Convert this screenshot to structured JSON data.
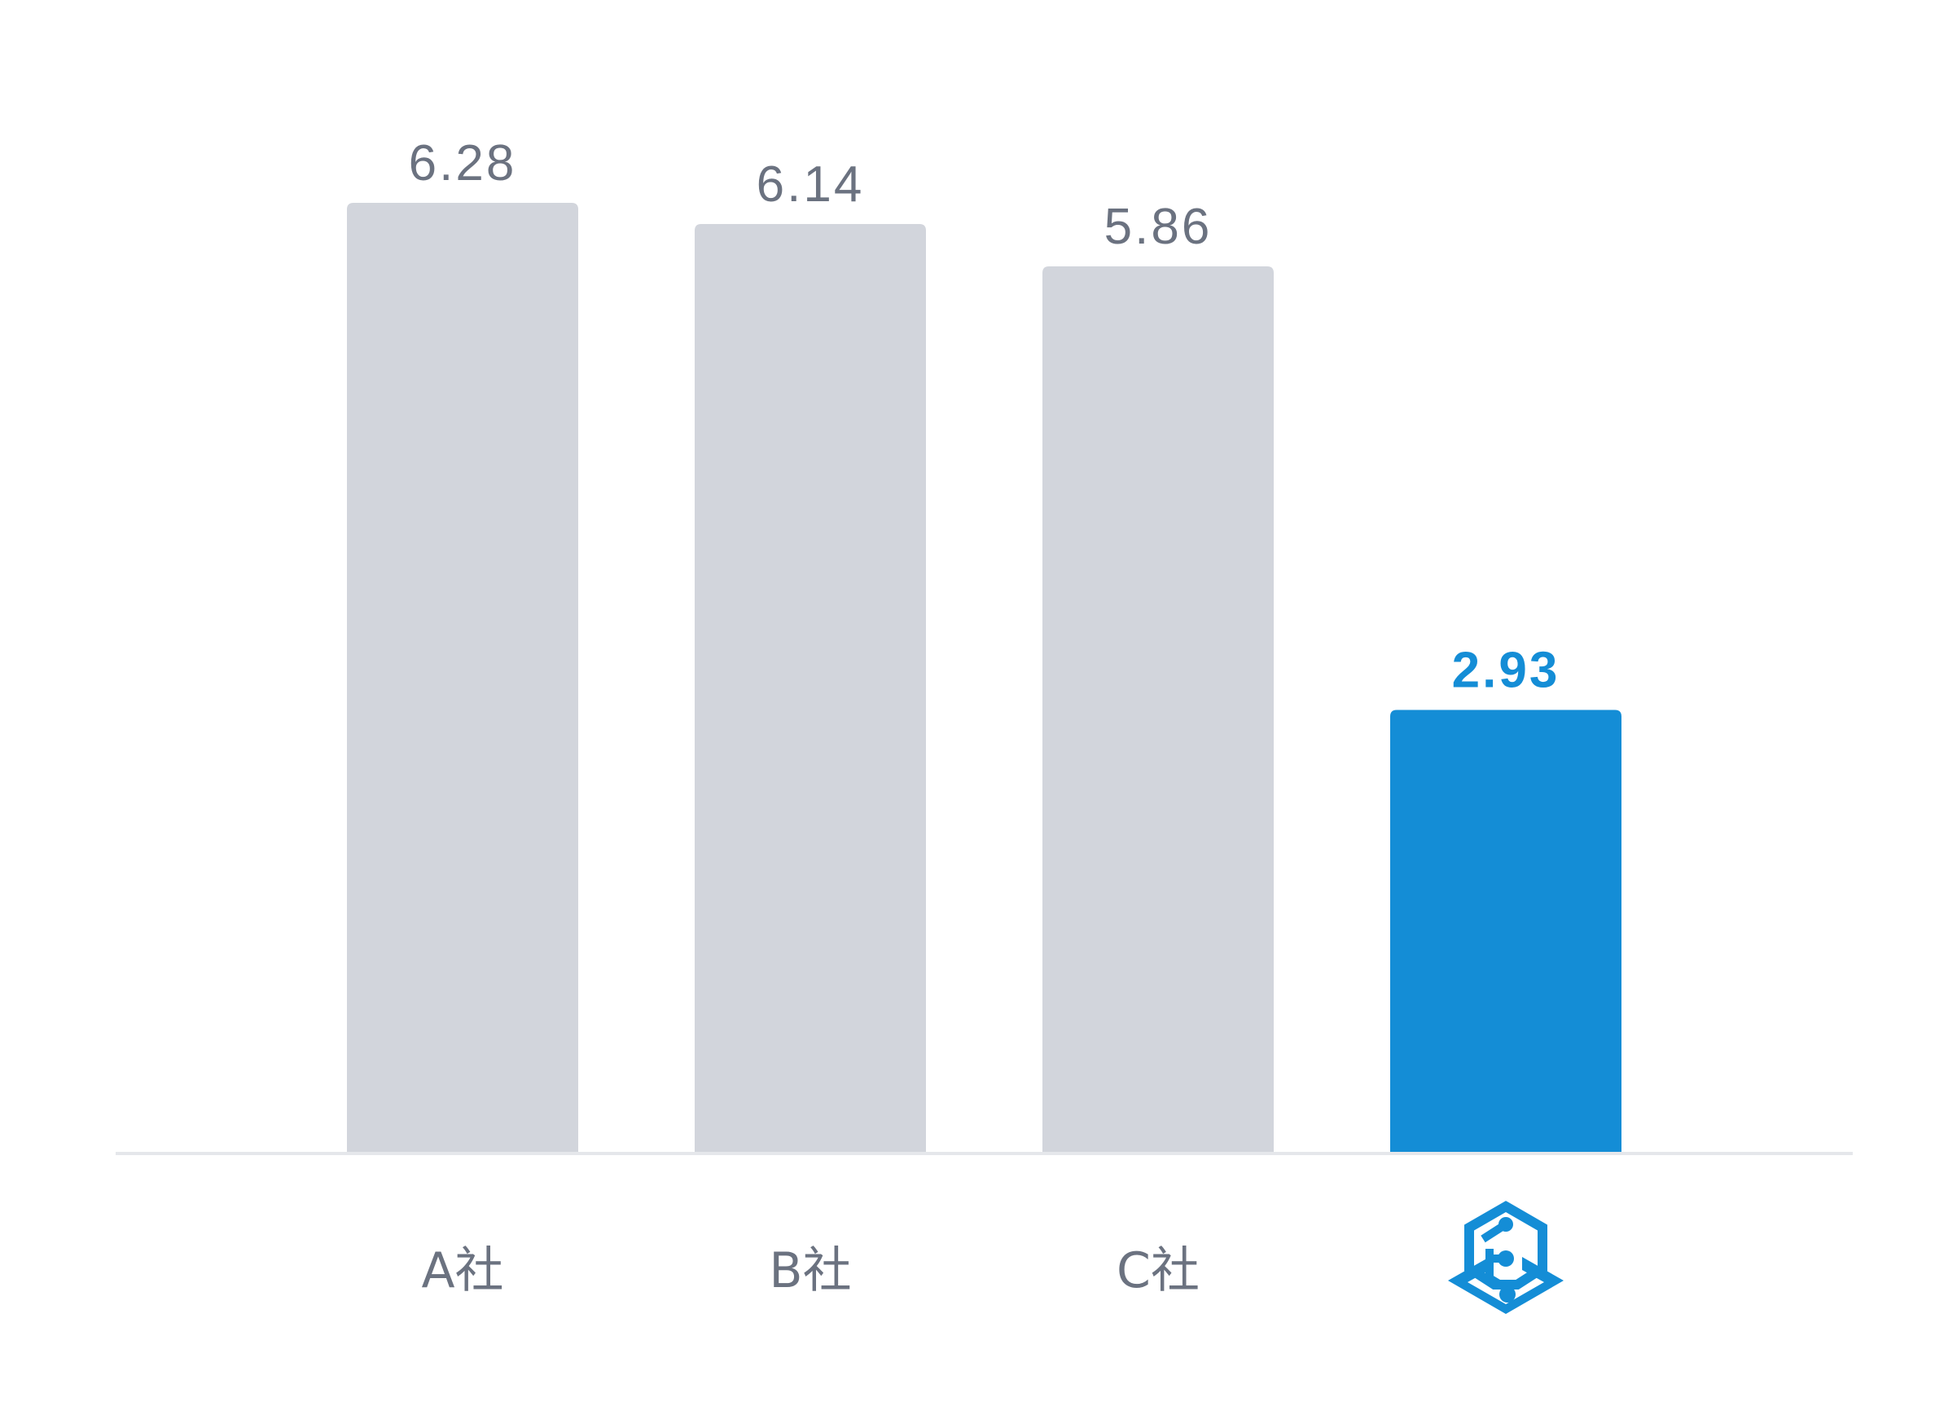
{
  "chart_data": {
    "type": "bar",
    "categories": [
      "A社",
      "B社",
      "C社",
      ""
    ],
    "values": [
      6.28,
      6.14,
      5.86,
      2.93
    ],
    "value_labels": [
      "6.28",
      "6.14",
      "5.86",
      "2.93"
    ],
    "highlight_index": 3,
    "ylim": [
      0,
      6.28
    ],
    "grid": false,
    "title": "",
    "xlabel": "",
    "ylabel": "",
    "last_category_icon": "hexagon-circuit-logo",
    "colors": {
      "bar": "#d2d5dc",
      "highlight_bar": "#148dd6",
      "label": "#6b7280",
      "highlight_label": "#148dd6",
      "baseline": "#e5e7eb"
    }
  }
}
